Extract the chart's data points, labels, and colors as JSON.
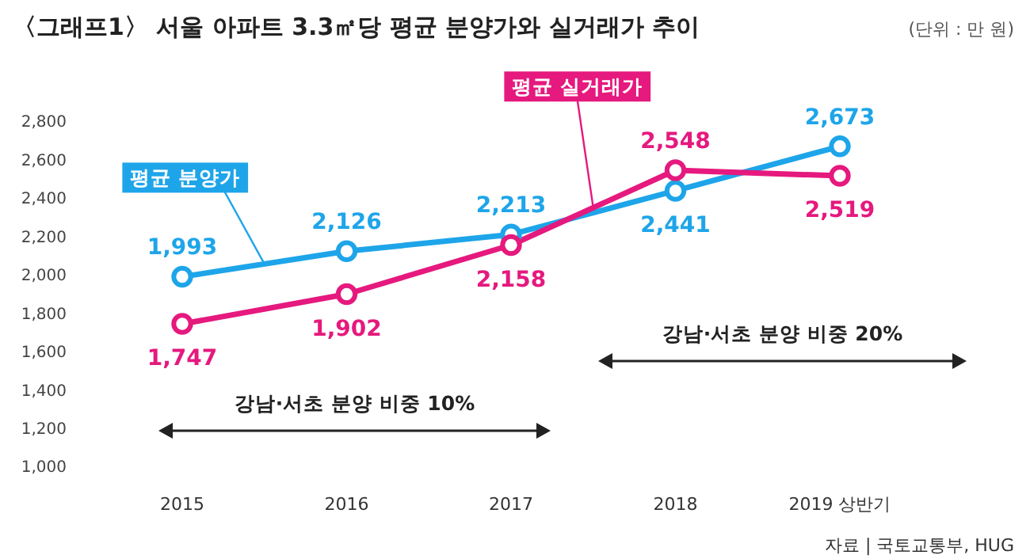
{
  "chart_data": {
    "type": "line",
    "title": "〈그래프1〉 서울 아파트 3.3㎡당 평균 분양가와 실거래가 추이",
    "subtitle": "(단위 : 만 원)",
    "categories": [
      "2015",
      "2016",
      "2017",
      "2018",
      "2019 상반기"
    ],
    "series": [
      {
        "name": "평균 분양가",
        "color": "#1ea5e9",
        "values": [
          1993,
          2126,
          2213,
          2441,
          2673
        ],
        "value_labels": [
          "1,993",
          "2,126",
          "2,213",
          "2,441",
          "2,673"
        ]
      },
      {
        "name": "평균 실거래가",
        "color": "#e5197e",
        "values": [
          1747,
          1902,
          2158,
          2548,
          2519
        ],
        "value_labels": [
          "1,747",
          "1,902",
          "2,158",
          "2,548",
          "2,519"
        ]
      }
    ],
    "ylim": [
      1000,
      2800
    ],
    "yticks": [
      {
        "value": 1000,
        "label": "1,000"
      },
      {
        "value": 1200,
        "label": "1,200"
      },
      {
        "value": 1400,
        "label": "1,400"
      },
      {
        "value": 1600,
        "label": "1,600"
      },
      {
        "value": 1800,
        "label": "1,800"
      },
      {
        "value": 2000,
        "label": "2,000"
      },
      {
        "value": 2200,
        "label": "2,200"
      },
      {
        "value": 2400,
        "label": "2,400"
      },
      {
        "value": 2600,
        "label": "2,600"
      },
      {
        "value": 2800,
        "label": "2,800"
      }
    ],
    "marker": "circle",
    "grid": false,
    "annotations": [
      "강남·서초 분양 비중 10%",
      "강남·서초 분양 비중 20%",
      "자료 | 국토교통부, HUG"
    ]
  }
}
